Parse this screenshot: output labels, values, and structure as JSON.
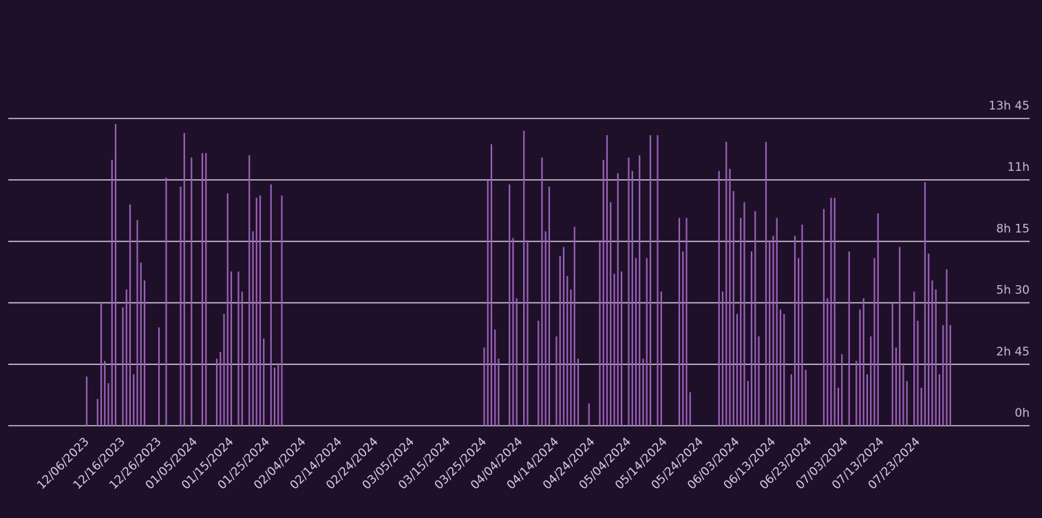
{
  "colors": {
    "background": "#1f1029",
    "bar": "#9b62b8",
    "grid": "#d6c8e0",
    "label": "#c9b6dc"
  },
  "chart_data": {
    "type": "bar",
    "title": "",
    "xlabel": "",
    "ylabel": "",
    "unit": "hours",
    "ylim": [
      0,
      13.75
    ],
    "yticks": [
      {
        "value": 0,
        "label": "0h"
      },
      {
        "value": 2.75,
        "label": "2h 45"
      },
      {
        "value": 5.5,
        "label": "5h 30"
      },
      {
        "value": 8.25,
        "label": "8h 15"
      },
      {
        "value": 11,
        "label": "11h"
      },
      {
        "value": 13.75,
        "label": "13h 45"
      }
    ],
    "xticks": [
      "12/06/2023",
      "12/16/2023",
      "12/26/2023",
      "01/05/2024",
      "01/15/2024",
      "01/25/2024",
      "02/04/2024",
      "02/14/2024",
      "02/24/2024",
      "03/05/2024",
      "03/15/2024",
      "03/25/2024",
      "04/04/2024",
      "04/14/2024",
      "04/24/2024",
      "05/04/2024",
      "05/14/2024",
      "05/24/2024",
      "06/03/2024",
      "06/13/2024",
      "06/23/2024",
      "07/03/2024",
      "07/13/2024",
      "07/23/2024"
    ],
    "start_date": "2023-11-26",
    "day_values": [
      [
        10,
        2.2
      ],
      [
        13,
        1.2
      ],
      [
        14,
        5.5
      ],
      [
        15,
        2.9
      ],
      [
        16,
        1.9
      ],
      [
        17,
        11.9
      ],
      [
        18,
        13.5
      ],
      [
        20,
        5.3
      ],
      [
        21,
        6.1
      ],
      [
        22,
        9.9
      ],
      [
        23,
        2.3
      ],
      [
        24,
        9.2
      ],
      [
        25,
        7.3
      ],
      [
        26,
        6.5
      ],
      [
        30,
        4.4
      ],
      [
        32,
        11.1
      ],
      [
        36,
        10.7
      ],
      [
        37,
        13.1
      ],
      [
        39,
        12.0
      ],
      [
        42,
        12.2
      ],
      [
        43,
        12.2
      ],
      [
        46,
        3.0
      ],
      [
        47,
        3.3
      ],
      [
        48,
        5.0
      ],
      [
        49,
        10.4
      ],
      [
        50,
        6.9
      ],
      [
        52,
        6.9
      ],
      [
        53,
        6.0
      ],
      [
        55,
        12.1
      ],
      [
        56,
        8.7
      ],
      [
        57,
        10.2
      ],
      [
        58,
        10.3
      ],
      [
        59,
        3.9
      ],
      [
        61,
        10.8
      ],
      [
        62,
        2.6
      ],
      [
        63,
        2.8
      ],
      [
        64,
        10.3
      ],
      [
        120,
        3.5
      ],
      [
        121,
        11.0
      ],
      [
        122,
        12.6
      ],
      [
        123,
        4.3
      ],
      [
        124,
        3.0
      ],
      [
        127,
        10.8
      ],
      [
        128,
        8.4
      ],
      [
        129,
        5.7
      ],
      [
        131,
        13.2
      ],
      [
        132,
        8.3
      ],
      [
        135,
        4.7
      ],
      [
        136,
        12.0
      ],
      [
        137,
        8.7
      ],
      [
        138,
        10.7
      ],
      [
        140,
        4.0
      ],
      [
        141,
        7.6
      ],
      [
        142,
        8.0
      ],
      [
        143,
        6.7
      ],
      [
        144,
        6.1
      ],
      [
        145,
        8.9
      ],
      [
        146,
        3.0
      ],
      [
        149,
        1.0
      ],
      [
        152,
        8.3
      ],
      [
        153,
        11.9
      ],
      [
        154,
        13.0
      ],
      [
        155,
        10.0
      ],
      [
        156,
        6.8
      ],
      [
        157,
        11.3
      ],
      [
        158,
        6.9
      ],
      [
        160,
        12.0
      ],
      [
        161,
        11.4
      ],
      [
        162,
        7.5
      ],
      [
        163,
        12.1
      ],
      [
        164,
        3.0
      ],
      [
        165,
        7.5
      ],
      [
        166,
        13.0
      ],
      [
        168,
        13.0
      ],
      [
        169,
        6.0
      ],
      [
        174,
        9.3
      ],
      [
        175,
        7.8
      ],
      [
        176,
        9.3
      ],
      [
        177,
        1.5
      ],
      [
        185,
        11.4
      ],
      [
        186,
        6.0
      ],
      [
        187,
        12.7
      ],
      [
        188,
        11.5
      ],
      [
        189,
        10.5
      ],
      [
        190,
        5.0
      ],
      [
        191,
        9.3
      ],
      [
        192,
        10.0
      ],
      [
        193,
        2.0
      ],
      [
        194,
        7.8
      ],
      [
        195,
        9.6
      ],
      [
        196,
        4.0
      ],
      [
        198,
        12.7
      ],
      [
        199,
        8.3
      ],
      [
        200,
        8.5
      ],
      [
        201,
        9.3
      ],
      [
        202,
        5.2
      ],
      [
        203,
        5.0
      ],
      [
        205,
        2.3
      ],
      [
        206,
        8.5
      ],
      [
        207,
        7.5
      ],
      [
        208,
        9.0
      ],
      [
        209,
        2.5
      ],
      [
        214,
        9.7
      ],
      [
        215,
        5.7
      ],
      [
        216,
        10.2
      ],
      [
        217,
        10.2
      ],
      [
        218,
        1.7
      ],
      [
        219,
        3.2
      ],
      [
        221,
        7.8
      ],
      [
        223,
        2.9
      ],
      [
        224,
        5.2
      ],
      [
        225,
        5.7
      ],
      [
        226,
        2.3
      ],
      [
        227,
        4.0
      ],
      [
        228,
        7.5
      ],
      [
        229,
        9.5
      ],
      [
        233,
        5.5
      ],
      [
        234,
        3.5
      ],
      [
        235,
        8.0
      ],
      [
        236,
        2.8
      ],
      [
        237,
        2.0
      ],
      [
        239,
        6.0
      ],
      [
        240,
        4.7
      ],
      [
        241,
        1.7
      ],
      [
        242,
        10.9
      ],
      [
        243,
        7.7
      ],
      [
        244,
        6.5
      ],
      [
        245,
        6.1
      ],
      [
        246,
        2.3
      ],
      [
        247,
        4.5
      ],
      [
        248,
        7.0
      ],
      [
        249,
        4.5
      ]
    ]
  }
}
